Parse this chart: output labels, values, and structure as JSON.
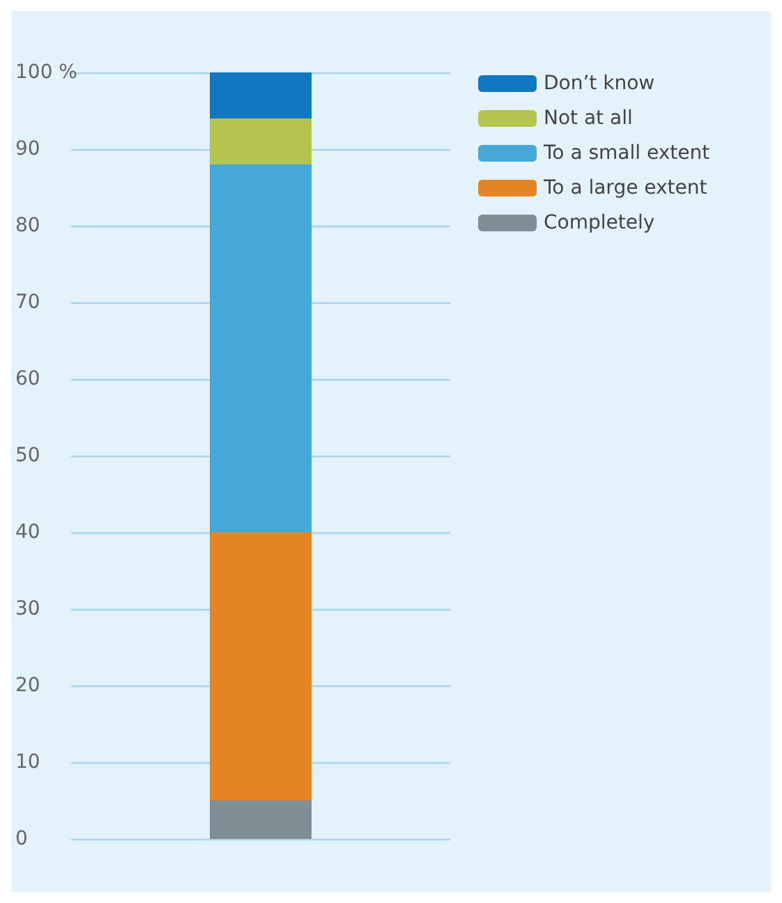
{
  "chart_data": {
    "type": "bar",
    "stacked": true,
    "categories": [
      null
    ],
    "series": [
      {
        "name": "Completely",
        "color": "#7f8d94",
        "values": [
          5
        ]
      },
      {
        "name": "To a large extent",
        "color": "#e58424",
        "values": [
          35
        ]
      },
      {
        "name": "To a small extent",
        "color": "#46a8d6",
        "values": [
          48
        ]
      },
      {
        "name": "Not at all",
        "color": "#b5c44f",
        "values": [
          6
        ]
      },
      {
        "name": "Don’t know",
        "color": "#1177c0",
        "values": [
          6
        ]
      }
    ],
    "ylim": [
      0,
      100
    ],
    "yticks": [
      0,
      10,
      20,
      30,
      40,
      50,
      60,
      70,
      80,
      90,
      {
        "value": 100,
        "label": "100 %"
      }
    ],
    "grid": "y",
    "legend": "top right"
  }
}
